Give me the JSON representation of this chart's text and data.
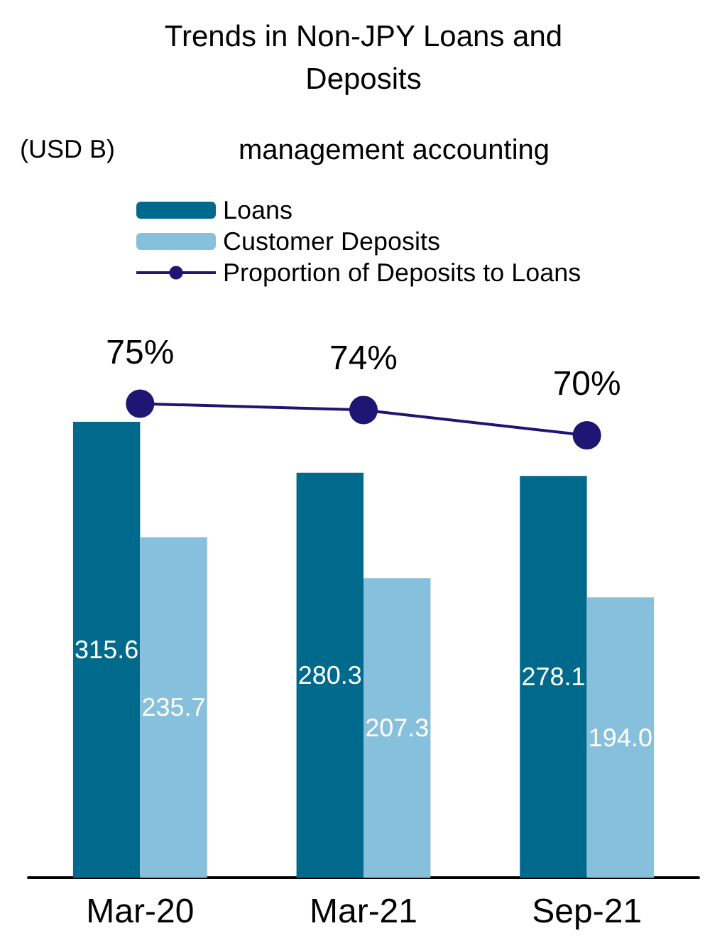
{
  "chart_data": {
    "type": "bar",
    "title": "Trends in Non-JPY Loans and\nDeposits",
    "annotations": [
      "(USD B)",
      "management accounting"
    ],
    "categories": [
      "Mar-20",
      "Mar-21",
      "Sep-21"
    ],
    "series": [
      {
        "name": "Loans",
        "color": "#006a8c",
        "values": [
          315.6,
          280.3,
          278.1
        ]
      },
      {
        "name": "Customer Deposits",
        "color": "#86c0dc",
        "values": [
          235.7,
          207.3,
          194.0
        ],
        "value_labels": [
          "235.7",
          "207.3",
          "194.0"
        ]
      },
      {
        "name": "Proportion of Deposits to Loans",
        "type": "line",
        "axis": "y2",
        "color": "#1e1672",
        "values": [
          75,
          74,
          70
        ],
        "value_labels": [
          "75%",
          "74%",
          "70%"
        ]
      }
    ],
    "data_labels": true,
    "legend": "top",
    "marker": "circle",
    "tick_labels": "x"
  }
}
